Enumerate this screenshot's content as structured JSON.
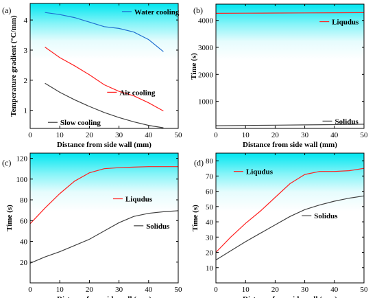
{
  "chart_data": [
    {
      "type": "line",
      "panel_label": "(a)",
      "xlabel": "Distance from side wall (mm)",
      "ylabel": "Temperature gradient (°C/mm)",
      "xlim": [
        0,
        50
      ],
      "ylim": [
        0.4,
        4.55
      ],
      "xticks": [
        0,
        10,
        20,
        30,
        40,
        50
      ],
      "yticks": [
        1,
        2,
        3,
        4
      ],
      "background": "cyan-gradient",
      "series": [
        {
          "name": "Water cooling",
          "color": "#1f6fd0",
          "x": [
            5,
            10,
            15,
            20,
            25,
            30,
            35,
            40,
            45
          ],
          "y": [
            4.25,
            4.18,
            4.08,
            3.93,
            3.78,
            3.72,
            3.6,
            3.35,
            2.95
          ]
        },
        {
          "name": "Air cooling",
          "color": "#ff2020",
          "x": [
            5,
            10,
            15,
            20,
            25,
            30,
            35,
            40,
            45
          ],
          "y": [
            3.1,
            2.75,
            2.48,
            2.18,
            1.85,
            1.63,
            1.48,
            1.25,
            0.98
          ]
        },
        {
          "name": "Slow cooling",
          "color": "#404040",
          "x": [
            5,
            10,
            15,
            20,
            25,
            30,
            35,
            40,
            45
          ],
          "y": [
            1.9,
            1.6,
            1.35,
            1.13,
            0.93,
            0.76,
            0.62,
            0.5,
            0.42
          ]
        }
      ],
      "legend_positions": [
        [
          31,
          4.28
        ],
        [
          26,
          1.6
        ],
        [
          6,
          0.6
        ]
      ]
    },
    {
      "type": "line",
      "panel_label": "(b)",
      "xlabel": "Distance from side wall (mm)",
      "ylabel": "Time (s)",
      "xlim": [
        0,
        50
      ],
      "ylim": [
        0,
        4600
      ],
      "xticks": [
        0,
        10,
        20,
        30,
        40,
        50
      ],
      "yticks": [
        1000,
        2000,
        3000,
        4000
      ],
      "background": "cyan-gradient",
      "series": [
        {
          "name": "Liqudus",
          "color": "#ff2020",
          "x": [
            0,
            10,
            20,
            30,
            40,
            50
          ],
          "y": [
            4260,
            4265,
            4270,
            4275,
            4280,
            4285
          ]
        },
        {
          "name": "Solidus",
          "color": "#404040",
          "x": [
            0,
            10,
            20,
            30,
            40,
            50
          ],
          "y": [
            100,
            110,
            120,
            130,
            140,
            155
          ]
        }
      ],
      "legend_positions": [
        [
          35,
          3950
        ],
        [
          36,
          270
        ]
      ]
    },
    {
      "type": "line",
      "panel_label": "(c)",
      "xlabel": "Distance from side wall (mm)",
      "ylabel": "Time (s)",
      "xlim": [
        0,
        50
      ],
      "ylim": [
        0,
        125
      ],
      "xticks": [
        0,
        10,
        20,
        30,
        40,
        50
      ],
      "yticks": [
        20,
        40,
        60,
        80,
        100,
        120
      ],
      "background": "cyan-gradient",
      "series": [
        {
          "name": "Liqudus",
          "color": "#ff2020",
          "x": [
            0,
            5,
            10,
            15,
            20,
            25,
            30,
            35,
            40,
            45,
            50
          ],
          "y": [
            57,
            72,
            86,
            98,
            106,
            110,
            111,
            111.5,
            112,
            112,
            112
          ]
        },
        {
          "name": "Solidus",
          "color": "#404040",
          "x": [
            0,
            5,
            10,
            15,
            20,
            25,
            30,
            35,
            40,
            45,
            50
          ],
          "y": [
            19,
            25,
            30,
            36,
            42,
            50,
            58,
            64,
            67,
            68.5,
            69.5
          ]
        }
      ],
      "legend_positions": [
        [
          28,
          81
        ],
        [
          35,
          55
        ]
      ]
    },
    {
      "type": "line",
      "panel_label": "(d)",
      "xlabel": "Distance from side wall (mm)",
      "ylabel": "Time (s)",
      "xlim": [
        0,
        50
      ],
      "ylim": [
        0,
        85
      ],
      "xticks": [
        0,
        10,
        20,
        30,
        40,
        50
      ],
      "yticks": [
        10,
        20,
        30,
        40,
        50,
        60,
        70,
        80
      ],
      "background": "cyan-gradient",
      "series": [
        {
          "name": "Liqudus",
          "color": "#ff2020",
          "x": [
            0,
            5,
            10,
            15,
            20,
            25,
            30,
            35,
            40,
            45,
            50
          ],
          "y": [
            20,
            30,
            39,
            47,
            56,
            65,
            71,
            73,
            73,
            73.5,
            75
          ]
        },
        {
          "name": "Solidus",
          "color": "#404040",
          "x": [
            0,
            5,
            10,
            15,
            20,
            25,
            30,
            35,
            40,
            45,
            50
          ],
          "y": [
            15,
            21,
            27,
            32.5,
            38,
            43.5,
            48,
            51,
            53.5,
            55.5,
            57
          ]
        }
      ],
      "legend_positions": [
        [
          6,
          73
        ],
        [
          29,
          44
        ]
      ]
    }
  ]
}
